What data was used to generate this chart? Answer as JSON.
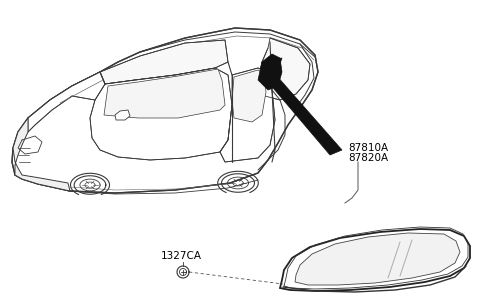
{
  "bg_color": "#ffffff",
  "label_87810A": "87810A",
  "label_87820A": "87820A",
  "label_1327CA": "1327CA",
  "label_fontsize": 7.5,
  "line_color": "#3a3a3a",
  "line_color_light": "#666666",
  "line_color_thin": "#888888"
}
